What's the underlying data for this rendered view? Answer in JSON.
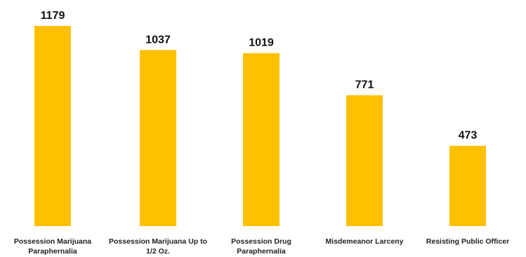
{
  "chart_data": {
    "type": "bar",
    "categories": [
      "Possession Marijuana Paraphernalia",
      "Possession Marijuana Up to 1/2 Oz.",
      "Possession Drug Paraphernalia",
      "Misdemeanor Larceny",
      "Resisting Public Officer"
    ],
    "values": [
      1179,
      1037,
      1019,
      771,
      473
    ],
    "value_labels": [
      "1179",
      "1037",
      "1019",
      "771",
      "473"
    ],
    "bar_color": "#FFC000",
    "ylim": [
      0,
      1179
    ],
    "grid": false,
    "legend": "none"
  }
}
